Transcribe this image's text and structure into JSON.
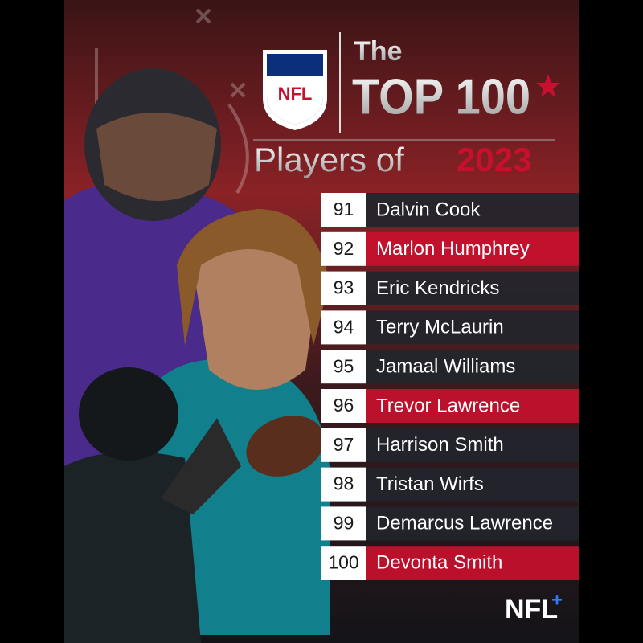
{
  "header": {
    "logo": "NFL",
    "the": "The",
    "top": "TOP 100",
    "players_of": "Players of",
    "year": "2023"
  },
  "list": {
    "rows": [
      {
        "rank": 91,
        "name": "Dalvin Cook",
        "color": "#22252c"
      },
      {
        "rank": 92,
        "name": "Marlon Humphrey",
        "color": "#c8102e"
      },
      {
        "rank": 93,
        "name": "Eric Kendricks",
        "color": "#22252c"
      },
      {
        "rank": 94,
        "name": "Terry McLaurin",
        "color": "#22252c"
      },
      {
        "rank": 95,
        "name": "Jamaal Williams",
        "color": "#22252c"
      },
      {
        "rank": 96,
        "name": "Trevor Lawrence",
        "color": "#c8102e"
      },
      {
        "rank": 97,
        "name": "Harrison Smith",
        "color": "#22252c"
      },
      {
        "rank": 98,
        "name": "Tristan Wirfs",
        "color": "#22252c"
      },
      {
        "rank": 99,
        "name": "Demarcus Lawrence",
        "color": "#22252c"
      },
      {
        "rank": 100,
        "name": "Devonta Smith",
        "color": "#c8102e"
      }
    ]
  },
  "footer": {
    "brand": "NFL",
    "plus": "+"
  }
}
